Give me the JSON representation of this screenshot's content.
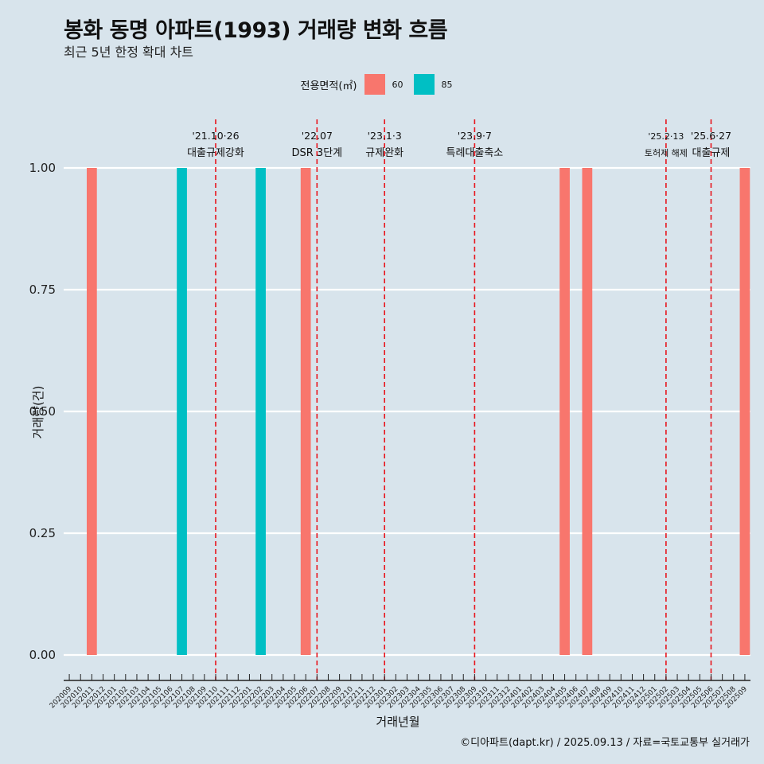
{
  "title": "봉화 동명 아파트(1993) 거래량 변화 흐름",
  "subtitle": "최근 5년 한정 확대 차트",
  "caption": "©디아파트(dapt.kr) / 2025.09.13 / 자료=국토교통부 실거래가",
  "legend": {
    "title": "전용면적(㎡)",
    "items": [
      {
        "label": "60",
        "color": "#f8766d"
      },
      {
        "label": "85",
        "color": "#00bfc4"
      }
    ]
  },
  "chart_data": {
    "type": "bar",
    "title": "봉화 동명 아파트(1993) 거래량 변화 흐름",
    "xlabel": "거래년월",
    "ylabel": "거래량(건)",
    "ylim": [
      0,
      1
    ],
    "yticks": [
      "0.00",
      "0.25",
      "0.50",
      "0.75",
      "1.00"
    ],
    "categories": [
      "202009",
      "202010",
      "202011",
      "202012",
      "202101",
      "202102",
      "202103",
      "202104",
      "202105",
      "202106",
      "202107",
      "202108",
      "202109",
      "202110",
      "202111",
      "202112",
      "202201",
      "202202",
      "202203",
      "202204",
      "202205",
      "202206",
      "202207",
      "202208",
      "202209",
      "202210",
      "202211",
      "202212",
      "202301",
      "202302",
      "202303",
      "202304",
      "202305",
      "202306",
      "202307",
      "202308",
      "202309",
      "202310",
      "202311",
      "202312",
      "202401",
      "202402",
      "202403",
      "202404",
      "202405",
      "202406",
      "202407",
      "202408",
      "202409",
      "202410",
      "202411",
      "202412",
      "202501",
      "202502",
      "202503",
      "202504",
      "202505",
      "202506",
      "202507",
      "202508",
      "202509"
    ],
    "series": [
      {
        "name": "60",
        "color": "#f8766d",
        "points": [
          {
            "x": "202011",
            "y": 1
          },
          {
            "x": "202206",
            "y": 1
          },
          {
            "x": "202405",
            "y": 1
          },
          {
            "x": "202407",
            "y": 1
          },
          {
            "x": "202509",
            "y": 1
          }
        ]
      },
      {
        "name": "85",
        "color": "#00bfc4",
        "points": [
          {
            "x": "202107",
            "y": 1
          },
          {
            "x": "202202",
            "y": 1
          }
        ]
      }
    ],
    "events": [
      {
        "pos": 13.0,
        "line1": "'21.10·26",
        "line2": "대출규제강화",
        "small": false
      },
      {
        "pos": 22.0,
        "line1": "'22.07",
        "line2": "DSR 3단계",
        "small": false
      },
      {
        "pos": 28.0,
        "line1": "'23.1·3",
        "line2": "규제완화",
        "small": false
      },
      {
        "pos": 36.0,
        "line1": "'23.9·7",
        "line2": "특례대출축소",
        "small": false
      },
      {
        "pos": 53.0,
        "line1": "'25.2·13",
        "line2": "토허제 해제",
        "small": true
      },
      {
        "pos": 57.0,
        "line1": "'25.6·27",
        "line2": "대출규제",
        "small": false
      }
    ]
  }
}
